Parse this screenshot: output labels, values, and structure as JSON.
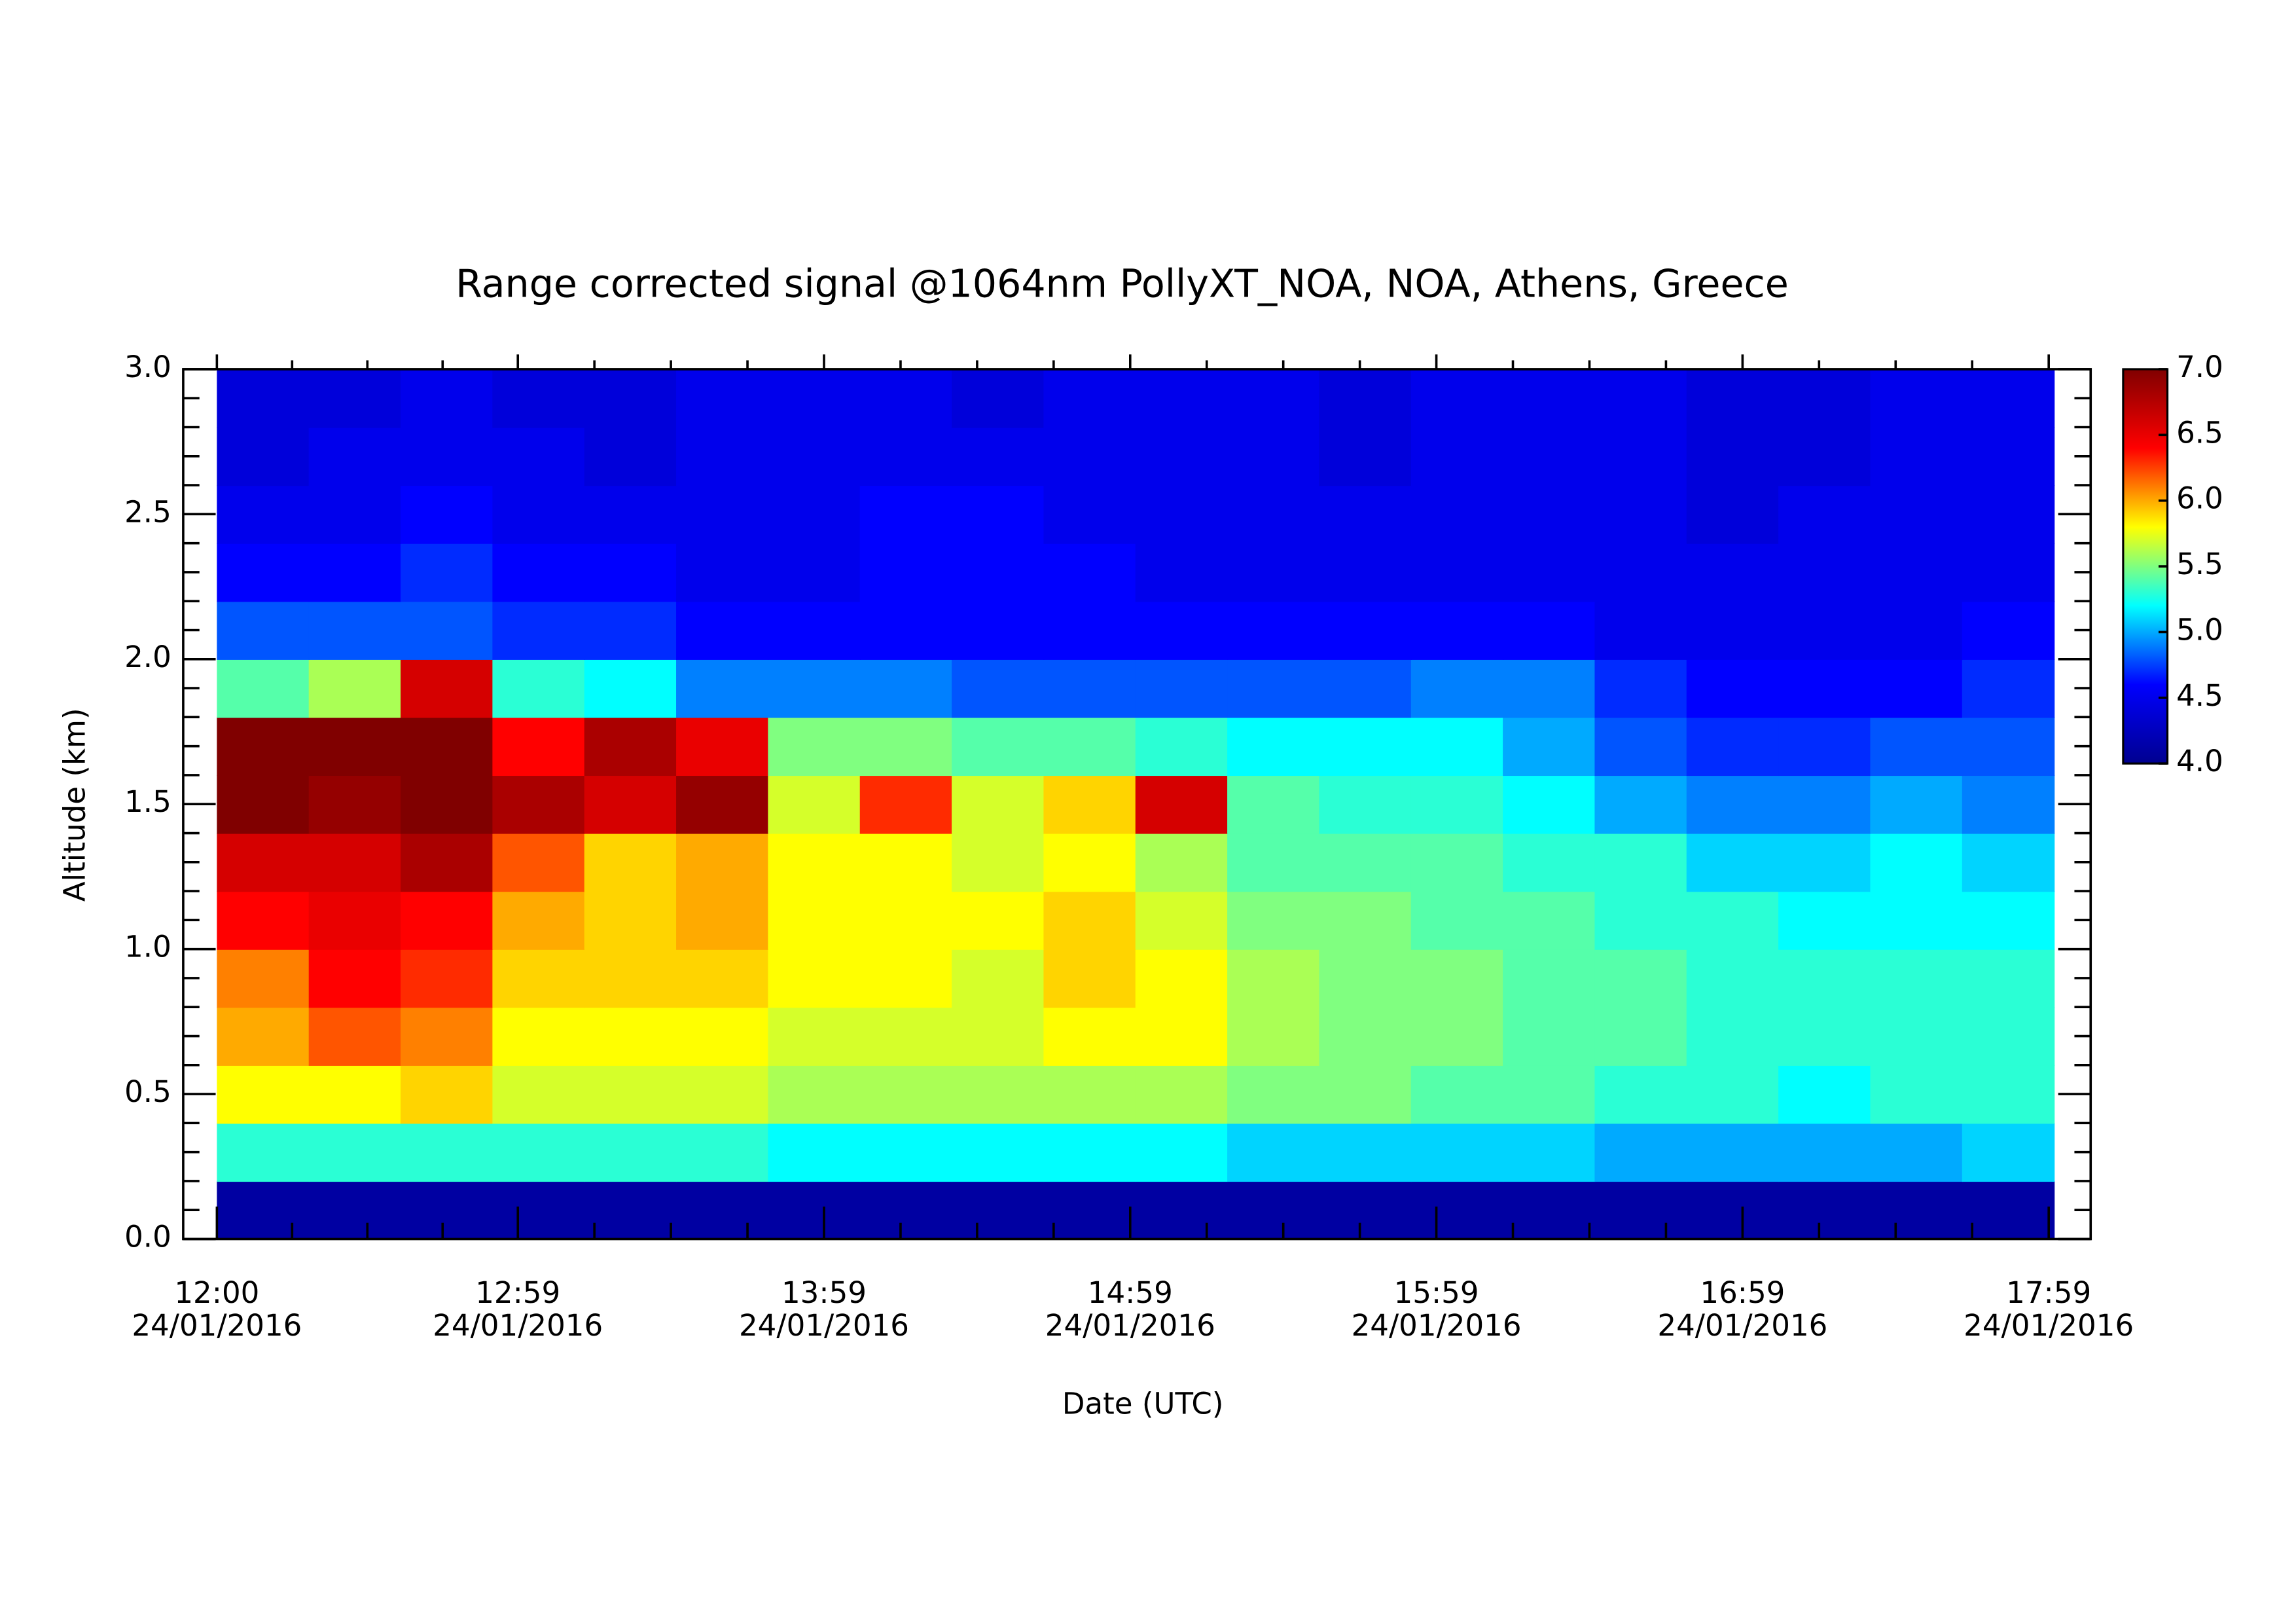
{
  "chart_data": {
    "type": "heatmap",
    "title": "Range corrected signal @1064nm  PollyXT_NOA, NOA, Athens, Greece",
    "xlabel": "Date (UTC)",
    "ylabel": "Altitude (km)",
    "xlim": [
      11.89,
      18.12
    ],
    "xticks": [
      {
        "value": 12.0,
        "label": "12:00",
        "sublabel": "24/01/2016"
      },
      {
        "value": 12.983,
        "label": "12:59",
        "sublabel": "24/01/2016"
      },
      {
        "value": 13.983,
        "label": "13:59",
        "sublabel": "24/01/2016"
      },
      {
        "value": 14.983,
        "label": "14:59",
        "sublabel": "24/01/2016"
      },
      {
        "value": 15.983,
        "label": "15:59",
        "sublabel": "24/01/2016"
      },
      {
        "value": 16.983,
        "label": "16:59",
        "sublabel": "24/01/2016"
      },
      {
        "value": 17.983,
        "label": "17:59",
        "sublabel": "24/01/2016"
      }
    ],
    "ylim": [
      0,
      3
    ],
    "yticks": [
      {
        "value": 0,
        "label": "0.0"
      },
      {
        "value": 0.5,
        "label": "0.5"
      },
      {
        "value": 1,
        "label": "1.0"
      },
      {
        "value": 1.5,
        "label": "1.5"
      },
      {
        "value": 2,
        "label": "2.0"
      },
      {
        "value": 2.5,
        "label": "2.5"
      },
      {
        "value": 3,
        "label": "3.0"
      }
    ],
    "xbins": [
      12.0,
      12.3,
      12.6,
      12.9,
      13.2,
      13.5,
      13.8,
      14.1,
      14.4,
      14.7,
      15.0,
      15.3,
      15.6,
      15.9,
      16.2,
      16.5,
      16.8,
      17.1,
      17.4,
      17.7,
      18.0
    ],
    "ybins": [
      0,
      0.2,
      0.4,
      0.6,
      0.8,
      1.0,
      1.2,
      1.4,
      1.6,
      1.8,
      2.0,
      2.2,
      2.4,
      2.6,
      2.8,
      3.0
    ],
    "z": [
      [
        4.1,
        4.1,
        4.1,
        4.1,
        4.1,
        4.1,
        4.1,
        4.1,
        4.1,
        4.1,
        4.1,
        4.1,
        4.1,
        4.1,
        4.1,
        4.1,
        4.1,
        4.1,
        4.1,
        4.1
      ],
      [
        5.3,
        5.3,
        5.3,
        5.3,
        5.3,
        5.3,
        5.2,
        5.2,
        5.2,
        5.2,
        5.2,
        5.1,
        5.1,
        5.1,
        5.1,
        5.0,
        5.0,
        5.0,
        5.0,
        5.1
      ],
      [
        5.8,
        5.8,
        5.9,
        5.7,
        5.7,
        5.7,
        5.6,
        5.6,
        5.6,
        5.6,
        5.6,
        5.5,
        5.5,
        5.4,
        5.4,
        5.3,
        5.3,
        5.2,
        5.3,
        5.3
      ],
      [
        6.0,
        6.2,
        6.1,
        5.8,
        5.8,
        5.8,
        5.7,
        5.7,
        5.7,
        5.8,
        5.8,
        5.6,
        5.5,
        5.5,
        5.4,
        5.4,
        5.3,
        5.3,
        5.3,
        5.3
      ],
      [
        6.1,
        6.4,
        6.3,
        5.9,
        5.9,
        5.9,
        5.8,
        5.8,
        5.7,
        5.9,
        5.8,
        5.6,
        5.5,
        5.5,
        5.4,
        5.4,
        5.3,
        5.3,
        5.3,
        5.3
      ],
      [
        6.4,
        6.5,
        6.4,
        6.0,
        5.9,
        6.0,
        5.8,
        5.8,
        5.8,
        5.9,
        5.7,
        5.5,
        5.5,
        5.4,
        5.4,
        5.3,
        5.3,
        5.2,
        5.2,
        5.2
      ],
      [
        6.6,
        6.6,
        6.8,
        6.2,
        5.9,
        6.0,
        5.8,
        5.8,
        5.7,
        5.8,
        5.6,
        5.4,
        5.4,
        5.4,
        5.3,
        5.3,
        5.1,
        5.1,
        5.2,
        5.1
      ],
      [
        7.0,
        6.9,
        7.0,
        6.8,
        6.6,
        6.9,
        5.7,
        6.3,
        5.7,
        5.9,
        6.6,
        5.4,
        5.3,
        5.3,
        5.2,
        5.0,
        4.9,
        4.9,
        5.0,
        4.9
      ],
      [
        7.0,
        7.0,
        7.0,
        6.4,
        6.8,
        6.5,
        5.5,
        5.5,
        5.4,
        5.4,
        5.3,
        5.2,
        5.2,
        5.2,
        5.0,
        4.8,
        4.7,
        4.7,
        4.8,
        4.8
      ],
      [
        5.4,
        5.6,
        6.6,
        5.3,
        5.2,
        4.9,
        4.9,
        4.9,
        4.8,
        4.8,
        4.8,
        4.8,
        4.8,
        4.9,
        4.9,
        4.7,
        4.6,
        4.6,
        4.6,
        4.7
      ],
      [
        4.8,
        4.8,
        4.8,
        4.7,
        4.7,
        4.6,
        4.6,
        4.6,
        4.6,
        4.6,
        4.6,
        4.6,
        4.6,
        4.6,
        4.6,
        4.5,
        4.5,
        4.5,
        4.5,
        4.6
      ],
      [
        4.6,
        4.6,
        4.7,
        4.6,
        4.6,
        4.5,
        4.5,
        4.6,
        4.6,
        4.6,
        4.5,
        4.5,
        4.5,
        4.5,
        4.5,
        4.5,
        4.5,
        4.5,
        4.5,
        4.5
      ],
      [
        4.5,
        4.5,
        4.6,
        4.5,
        4.5,
        4.5,
        4.5,
        4.6,
        4.6,
        4.5,
        4.5,
        4.5,
        4.5,
        4.5,
        4.5,
        4.5,
        4.4,
        4.5,
        4.5,
        4.5
      ],
      [
        4.4,
        4.5,
        4.5,
        4.5,
        4.4,
        4.5,
        4.5,
        4.5,
        4.5,
        4.5,
        4.5,
        4.5,
        4.4,
        4.5,
        4.5,
        4.5,
        4.4,
        4.4,
        4.5,
        4.5
      ],
      [
        4.4,
        4.4,
        4.5,
        4.4,
        4.4,
        4.5,
        4.5,
        4.5,
        4.4,
        4.5,
        4.5,
        4.5,
        4.4,
        4.5,
        4.5,
        4.5,
        4.4,
        4.4,
        4.5,
        4.5
      ]
    ],
    "zlim": [
      4,
      7
    ],
    "zticks": [
      {
        "value": 4,
        "label": "4.0"
      },
      {
        "value": 4.5,
        "label": "4.5"
      },
      {
        "value": 5,
        "label": "5.0"
      },
      {
        "value": 5.5,
        "label": "5.5"
      },
      {
        "value": 6,
        "label": "6.0"
      },
      {
        "value": 6.5,
        "label": "6.5"
      },
      {
        "value": 7,
        "label": "7.0"
      }
    ],
    "colorscale": [
      "#00008f",
      "#0000ff",
      "#00ffff",
      "#ffff00",
      "#ff0000",
      "#800000"
    ]
  }
}
